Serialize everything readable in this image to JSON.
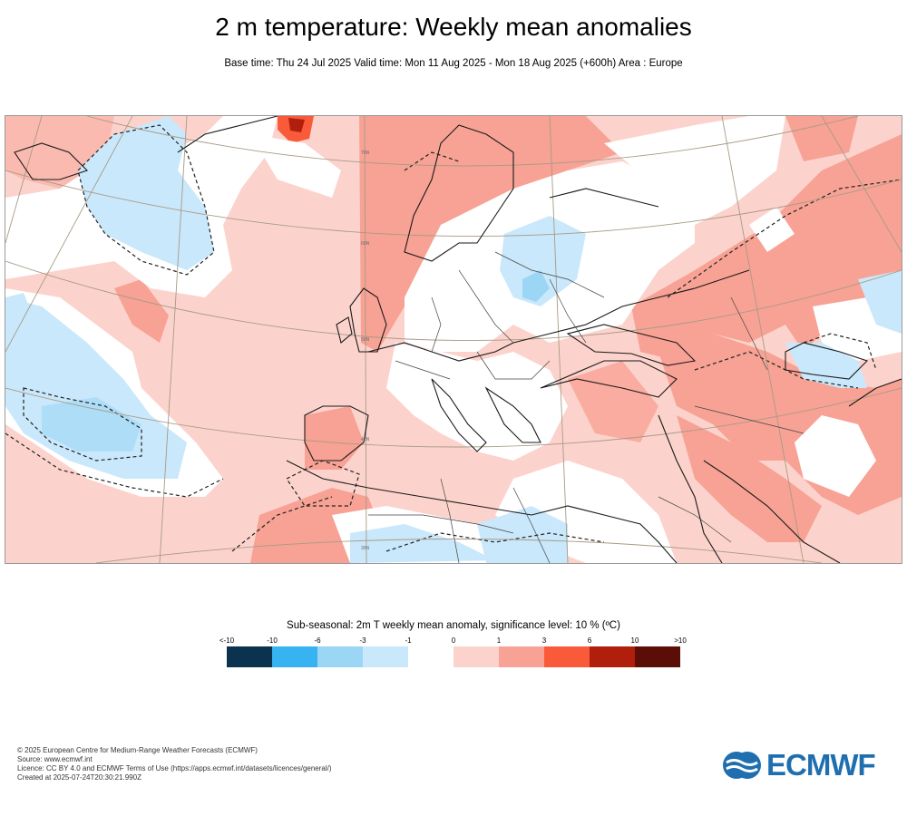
{
  "header": {
    "title": "2 m temperature: Weekly mean anomalies",
    "subtitle": "Base time: Thu 24 Jul 2025 Valid time: Mon 11 Aug 2025 - Mon 18 Aug 2025 (+600h) Area : Europe"
  },
  "map": {
    "region": "Europe",
    "latitude_labels": [
      "70N",
      "60N",
      "50N",
      "40N",
      "30N"
    ],
    "anomaly_colors": {
      "warm_1_3": "#fcd3cc",
      "warm_3_6": "#f7a294",
      "neutral": "#ffffff",
      "cool_-1_0": "#c9e8fb",
      "cool_-3_-1": "#9bd6f5"
    }
  },
  "colorbar": {
    "title": "Sub-seasonal: 2m T weekly mean anomaly, significance level: 10 % (ºC)",
    "ticks": [
      "<-10",
      "-10",
      "-6",
      "-3",
      "-1",
      "0",
      "1",
      "3",
      "6",
      "10",
      ">10"
    ],
    "colors": [
      "#0b3350",
      "#0f72b1",
      "#37b3f2",
      "#9bd6f5",
      "#c9e8fb",
      "#ffffff",
      "#fcd3cc",
      "#f7a294",
      "#f95b3a",
      "#b01f0c",
      "#5b0e07"
    ]
  },
  "footer": {
    "lines": [
      "© 2025 European Centre for Medium-Range Weather Forecasts (ECMWF)",
      "Source: www.ecmwf.int",
      "Licence: CC BY 4.0 and ECMWF Terms of Use (https://apps.ecmwf.int/datasets/licences/general/)",
      "Created at 2025-07-24T20:30:21.990Z"
    ]
  },
  "logo": {
    "text": "ECMWF",
    "color": "#1f6fb0"
  }
}
